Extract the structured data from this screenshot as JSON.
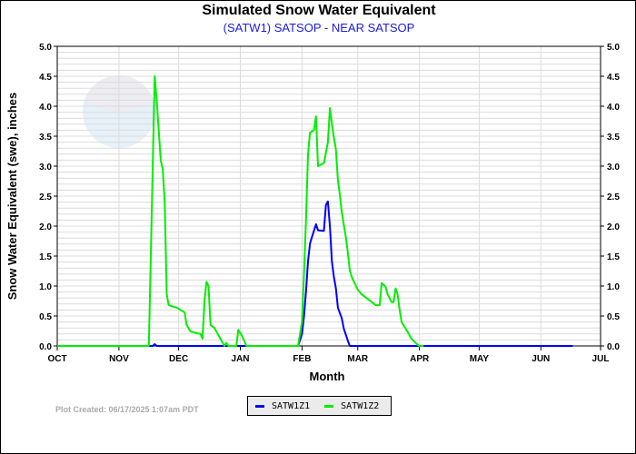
{
  "chart_data": {
    "type": "line",
    "title": "Simulated Snow Water Equivalent",
    "subtitle": "(SATW1) SATSOP - NEAR SATSOP",
    "xlabel": "Month",
    "ylabel": "Snow Water Equivalent (swe),  inches",
    "xlim": [
      "2024-10-01",
      "2025-07-01"
    ],
    "ylim": [
      0,
      5
    ],
    "x_tick_labels": [
      "OCT",
      "NOV",
      "DEC",
      "JAN",
      "FEB",
      "MAR",
      "APR",
      "MAY",
      "JUN",
      "JUL"
    ],
    "y_tick_labels": [
      "0.0",
      "0.5",
      "1.0",
      "1.5",
      "2.0",
      "2.5",
      "3.0",
      "3.5",
      "4.0",
      "4.5",
      "5.0"
    ],
    "grid": true,
    "legend_position": "bottom-center",
    "series": [
      {
        "name": "SATW1Z1",
        "color": "#0000ff",
        "points": [
          [
            "2024-10-01",
            0
          ],
          [
            "2024-11-18",
            0
          ],
          [
            "2024-11-19",
            0.03
          ],
          [
            "2024-11-20",
            0
          ],
          [
            "2025-01-30",
            0
          ],
          [
            "2025-02-01",
            0.2
          ],
          [
            "2025-02-02",
            0.5
          ],
          [
            "2025-02-03",
            0.91
          ],
          [
            "2025-02-04",
            1.41
          ],
          [
            "2025-02-05",
            1.71
          ],
          [
            "2025-02-06",
            1.82
          ],
          [
            "2025-02-08",
            2.03
          ],
          [
            "2025-02-09",
            1.93
          ],
          [
            "2025-02-12",
            1.92
          ],
          [
            "2025-02-13",
            2.35
          ],
          [
            "2025-02-14",
            2.41
          ],
          [
            "2025-02-15",
            2.0
          ],
          [
            "2025-02-16",
            1.41
          ],
          [
            "2025-02-17",
            1.15
          ],
          [
            "2025-02-18",
            0.96
          ],
          [
            "2025-02-19",
            0.64
          ],
          [
            "2025-02-21",
            0.46
          ],
          [
            "2025-02-22",
            0.29
          ],
          [
            "2025-02-24",
            0.09
          ],
          [
            "2025-02-25",
            0
          ],
          [
            "2025-06-17",
            0
          ]
        ]
      },
      {
        "name": "SATW1Z2",
        "color": "#00ee00",
        "points": [
          [
            "2024-10-01",
            0
          ],
          [
            "2024-11-16",
            0
          ],
          [
            "2024-11-17",
            1.5
          ],
          [
            "2024-11-18",
            3.0
          ],
          [
            "2024-11-19",
            4.5
          ],
          [
            "2024-11-20",
            4.1
          ],
          [
            "2024-11-21",
            3.6
          ],
          [
            "2024-11-22",
            3.1
          ],
          [
            "2024-11-23",
            2.95
          ],
          [
            "2024-11-24",
            2.4
          ],
          [
            "2024-11-25",
            0.86
          ],
          [
            "2024-11-26",
            0.68
          ],
          [
            "2024-11-30",
            0.64
          ],
          [
            "2024-12-04",
            0.56
          ],
          [
            "2024-12-05",
            0.35
          ],
          [
            "2024-12-07",
            0.24
          ],
          [
            "2024-12-12",
            0.2
          ],
          [
            "2024-12-13",
            0.12
          ],
          [
            "2024-12-14",
            0.76
          ],
          [
            "2024-12-15",
            1.07
          ],
          [
            "2024-12-16",
            1.0
          ],
          [
            "2024-12-17",
            0.35
          ],
          [
            "2024-12-19",
            0.3
          ],
          [
            "2024-12-24",
            0
          ],
          [
            "2024-12-25",
            0.05
          ],
          [
            "2024-12-26",
            0
          ],
          [
            "2024-12-30",
            0
          ],
          [
            "2024-12-31",
            0.27
          ],
          [
            "2025-01-02",
            0.16
          ],
          [
            "2025-01-04",
            0
          ],
          [
            "2025-01-30",
            0
          ],
          [
            "2025-02-01",
            0.4
          ],
          [
            "2025-02-02",
            1.2
          ],
          [
            "2025-02-03",
            2.1
          ],
          [
            "2025-02-04",
            3.2
          ],
          [
            "2025-02-05",
            3.56
          ],
          [
            "2025-02-07",
            3.6
          ],
          [
            "2025-02-08",
            3.83
          ],
          [
            "2025-02-09",
            3.0
          ],
          [
            "2025-02-12",
            3.05
          ],
          [
            "2025-02-14",
            3.4
          ],
          [
            "2025-02-15",
            3.97
          ],
          [
            "2025-02-16",
            3.7
          ],
          [
            "2025-02-17",
            3.48
          ],
          [
            "2025-02-18",
            3.28
          ],
          [
            "2025-02-19",
            2.77
          ],
          [
            "2025-02-20",
            2.53
          ],
          [
            "2025-02-21",
            2.23
          ],
          [
            "2025-02-23",
            1.82
          ],
          [
            "2025-02-24",
            1.56
          ],
          [
            "2025-02-25",
            1.26
          ],
          [
            "2025-02-26",
            1.15
          ],
          [
            "2025-03-01",
            0.94
          ],
          [
            "2025-03-03",
            0.86
          ],
          [
            "2025-03-07",
            0.76
          ],
          [
            "2025-03-10",
            0.68
          ],
          [
            "2025-03-12",
            0.68
          ],
          [
            "2025-03-13",
            1.05
          ],
          [
            "2025-03-15",
            0.99
          ],
          [
            "2025-03-16",
            0.86
          ],
          [
            "2025-03-18",
            0.73
          ],
          [
            "2025-03-19",
            0.73
          ],
          [
            "2025-03-20",
            0.96
          ],
          [
            "2025-03-21",
            0.86
          ],
          [
            "2025-03-22",
            0.61
          ],
          [
            "2025-03-23",
            0.4
          ],
          [
            "2025-03-26",
            0.24
          ],
          [
            "2025-03-28",
            0.12
          ],
          [
            "2025-03-31",
            0.02
          ],
          [
            "2025-04-01",
            0
          ],
          [
            "2025-04-03",
            0
          ]
        ]
      }
    ]
  },
  "footer": {
    "plot_created": "Plot Created: 06/17/2025 1:07am PDT"
  },
  "logo": {
    "text": "NOAA"
  }
}
